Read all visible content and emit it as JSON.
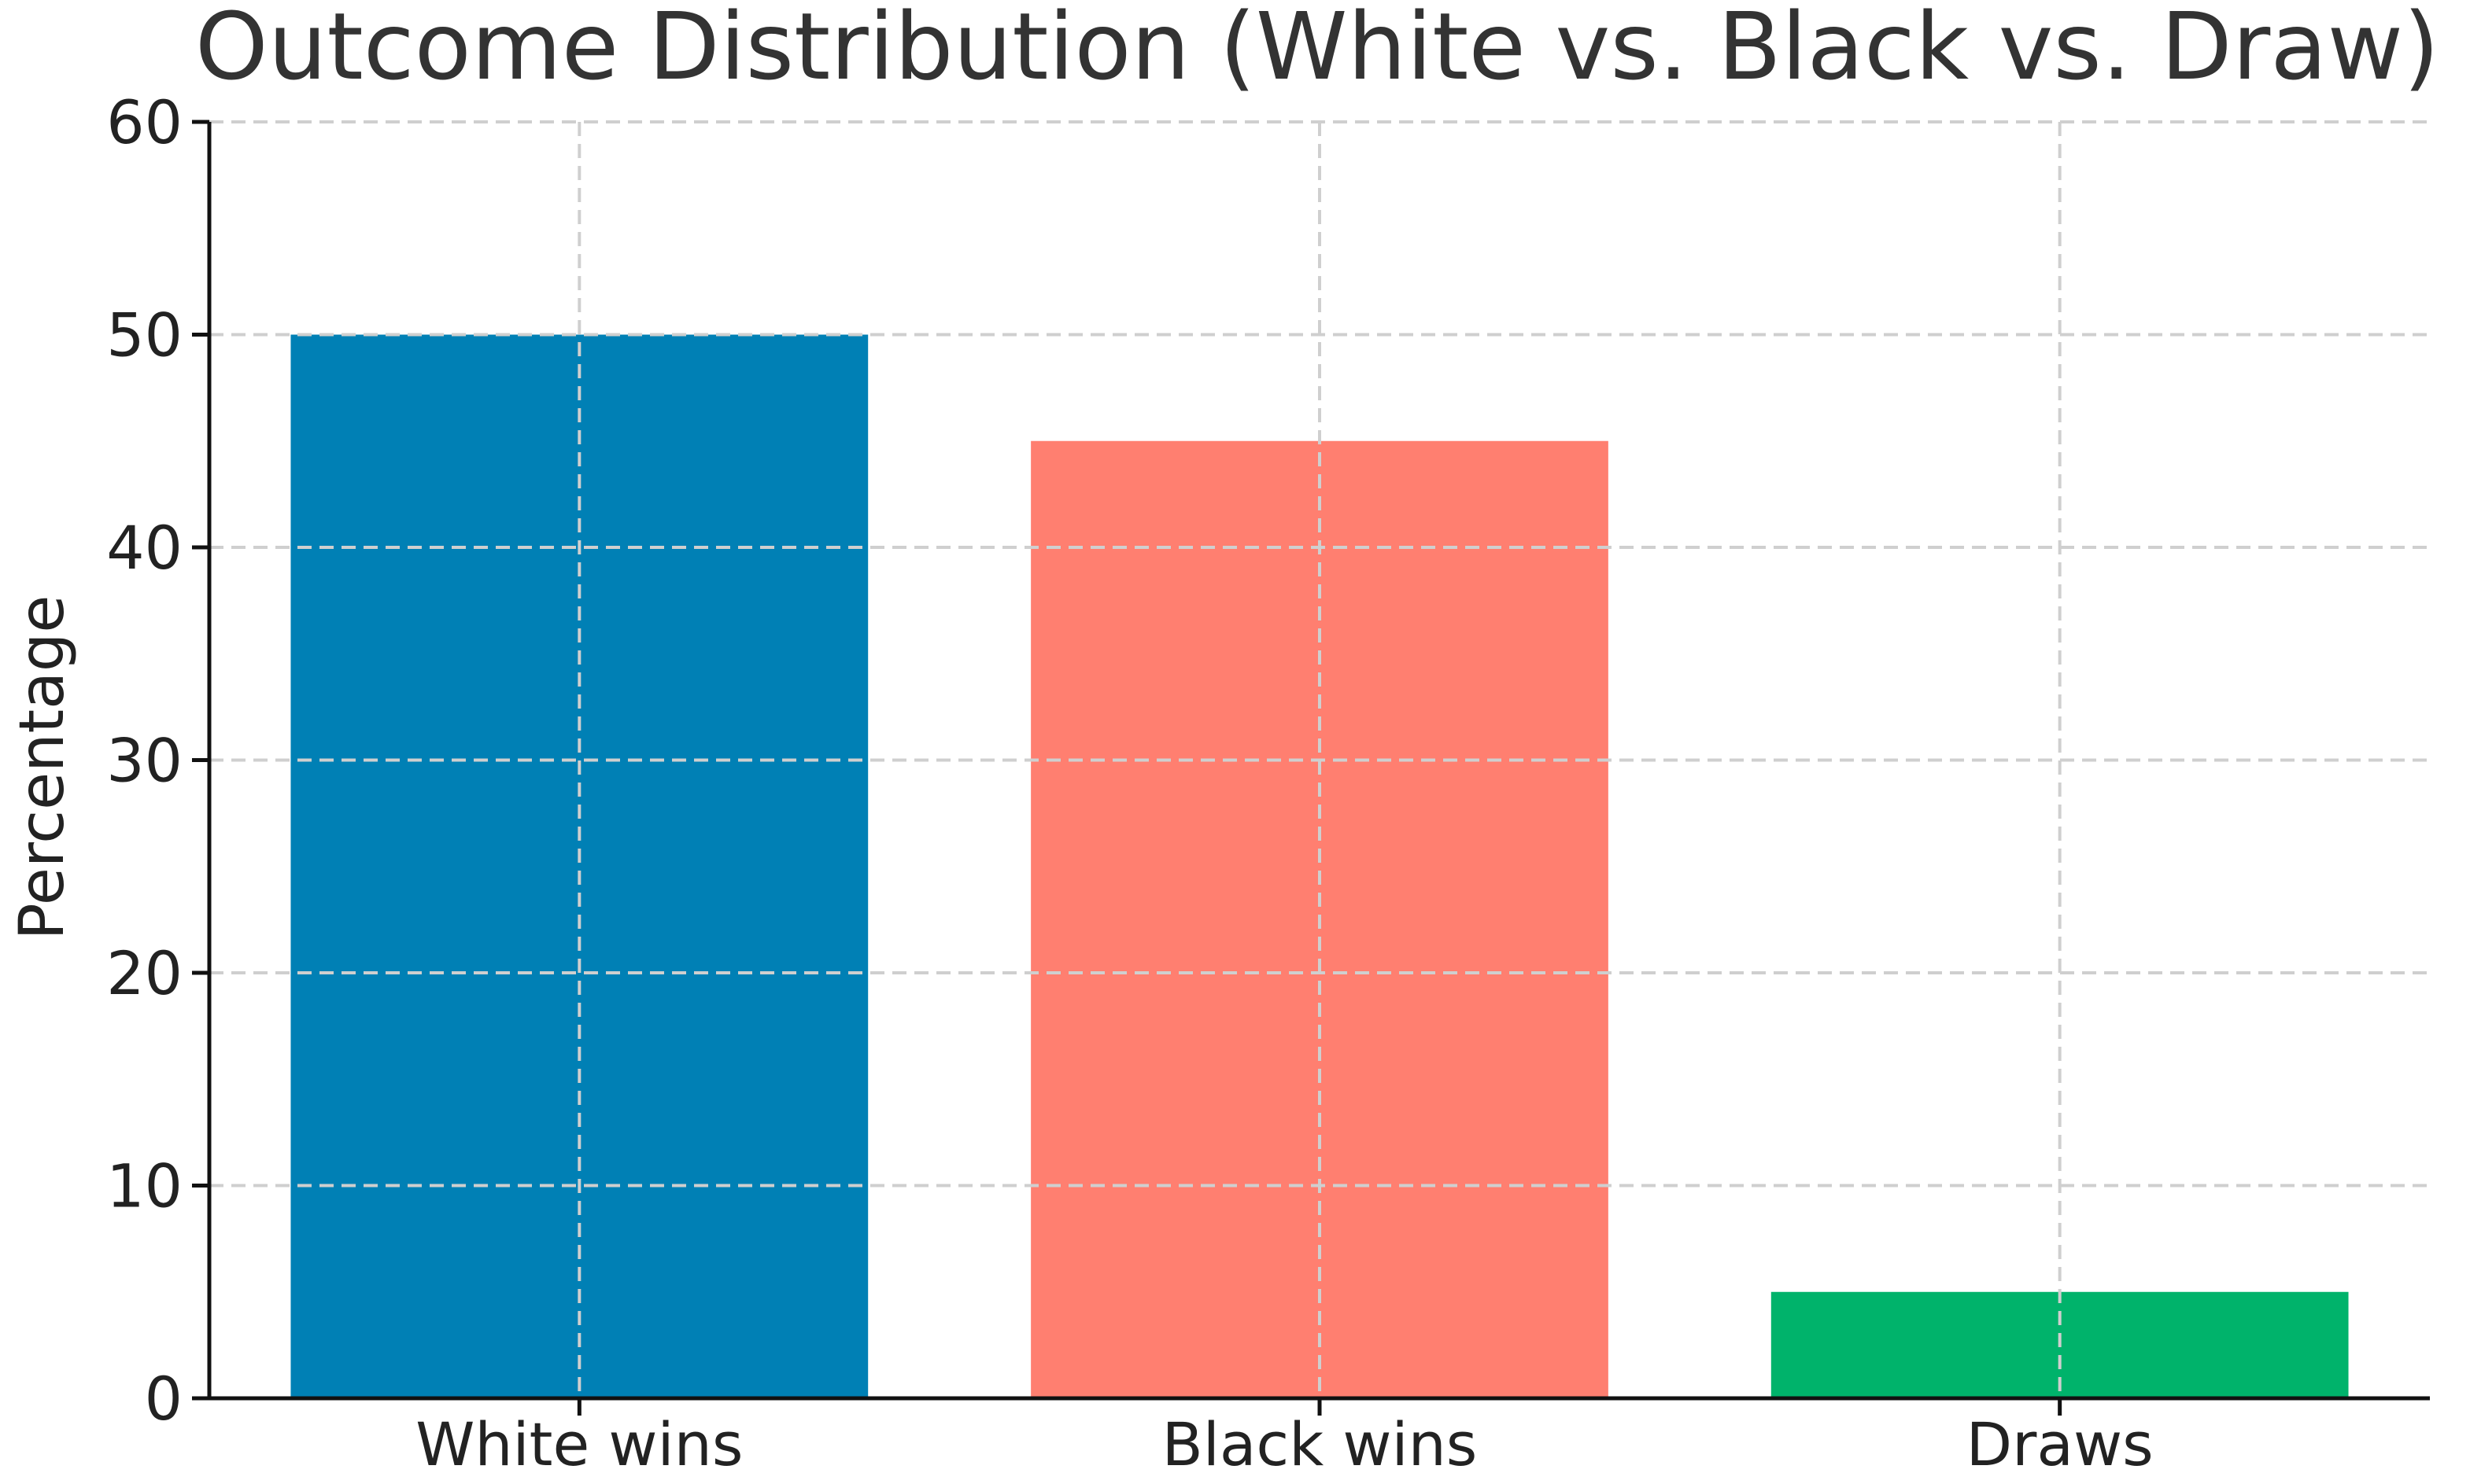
{
  "chart_data": {
    "type": "bar",
    "title": "Outcome Distribution (White vs. Black vs. Draw)",
    "xlabel": "",
    "ylabel": "Percentage",
    "categories": [
      "White wins",
      "Black wins",
      "Draws"
    ],
    "values": [
      50,
      45,
      5
    ],
    "colors": [
      "#0080b5",
      "#ff7f70",
      "#00b36b"
    ],
    "ylim": [
      0,
      60
    ],
    "yticks": [
      0,
      10,
      20,
      30,
      40,
      50,
      60
    ],
    "grid": true,
    "grid_style": "dashed",
    "legend": "none"
  }
}
